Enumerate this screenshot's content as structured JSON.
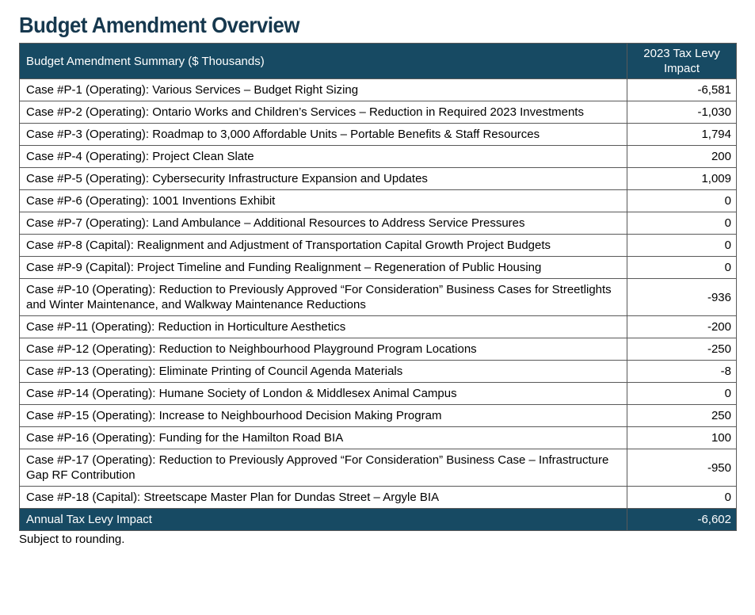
{
  "page": {
    "title": "Budget Amendment Overview",
    "footnote": "Subject to rounding."
  },
  "colors": {
    "header_bg": "#174a63",
    "header_text": "#ffffff",
    "title_text": "#16384e",
    "border": "#595959",
    "row_text": "#000000"
  },
  "table": {
    "header": {
      "summary_label": "Budget Amendment Summary ($ Thousands)",
      "impact_label": "2023 Tax Levy Impact"
    },
    "rows": [
      {
        "label": "Case #P-1 (Operating): Various Services – Budget Right Sizing",
        "value": "-6,581"
      },
      {
        "label": "Case #P-2 (Operating): Ontario Works and Children’s Services – Reduction in Required 2023 Investments",
        "value": "-1,030"
      },
      {
        "label": "Case #P-3 (Operating): Roadmap to 3,000 Affordable Units – Portable Benefits & Staff Resources",
        "value": "1,794"
      },
      {
        "label": "Case #P-4 (Operating): Project Clean Slate",
        "value": "200"
      },
      {
        "label": "Case #P-5 (Operating): Cybersecurity Infrastructure Expansion and Updates",
        "value": "1,009"
      },
      {
        "label": "Case #P-6 (Operating): 1001 Inventions Exhibit",
        "value": "0"
      },
      {
        "label": "Case #P-7 (Operating): Land Ambulance – Additional Resources to Address Service Pressures",
        "value": "0"
      },
      {
        "label": "Case #P-8 (Capital): Realignment and Adjustment of Transportation Capital Growth Project Budgets",
        "value": "0"
      },
      {
        "label": "Case #P-9 (Capital): Project Timeline and Funding Realignment – Regeneration of Public Housing",
        "value": "0"
      },
      {
        "label": "Case #P-10 (Operating): Reduction to Previously Approved “For Consideration” Business Cases for Streetlights and Winter Maintenance, and Walkway Maintenance Reductions",
        "value": "-936"
      },
      {
        "label": "Case #P-11 (Operating): Reduction in Horticulture Aesthetics",
        "value": "-200"
      },
      {
        "label": "Case #P-12 (Operating): Reduction to Neighbourhood Playground Program Locations",
        "value": "-250"
      },
      {
        "label": "Case #P-13 (Operating): Eliminate Printing of Council Agenda Materials",
        "value": "-8"
      },
      {
        "label": "Case #P-14 (Operating): Humane Society of London & Middlesex Animal Campus",
        "value": "0"
      },
      {
        "label": "Case #P-15 (Operating): Increase to Neighbourhood Decision Making Program",
        "value": "250"
      },
      {
        "label": "Case #P-16 (Operating): Funding for the Hamilton Road BIA",
        "value": "100"
      },
      {
        "label": "Case #P-17 (Operating): Reduction to Previously Approved “For Consideration” Business Case – Infrastructure Gap RF Contribution",
        "value": "-950"
      },
      {
        "label": "Case #P-18 (Capital): Streetscape Master Plan for Dundas Street – Argyle BIA",
        "value": "0"
      }
    ],
    "total": {
      "label": "Annual Tax Levy Impact",
      "value": "-6,602"
    }
  }
}
